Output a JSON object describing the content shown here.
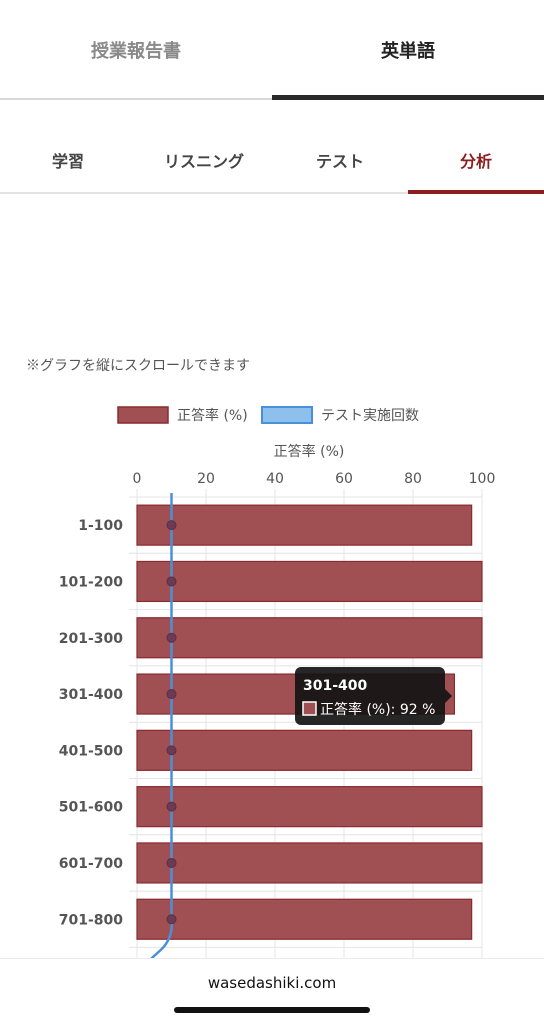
{
  "top_tabs": [
    {
      "label": "授業報告書",
      "active": false
    },
    {
      "label": "英単語",
      "active": true
    }
  ],
  "sub_tabs": [
    {
      "label": "学習",
      "active": false
    },
    {
      "label": "リスニング",
      "active": false
    },
    {
      "label": "テスト",
      "active": false
    },
    {
      "label": "分析",
      "active": true
    }
  ],
  "note": "※グラフを縦にスクロールできます",
  "colors": {
    "accent": "#8b1e1e",
    "bar_fill": "#a05052",
    "bar_border": "#8b2a2e",
    "line": "#4a90d9"
  },
  "chart_data": {
    "type": "bar",
    "orientation": "horizontal",
    "categories": [
      "1-100",
      "101-200",
      "201-300",
      "301-400",
      "401-500",
      "501-600",
      "601-700",
      "701-800"
    ],
    "series": [
      {
        "name": "正答率 (%)",
        "type": "bar",
        "values": [
          97,
          100,
          100,
          92,
          97,
          100,
          100,
          97
        ]
      },
      {
        "name": "テスト実施回数",
        "type": "line",
        "values": [
          10,
          10,
          10,
          10,
          10,
          10,
          10,
          10
        ]
      }
    ],
    "xlabel": "正答率 (%)",
    "xlim": [
      0,
      100
    ],
    "xticks": [
      "0",
      "20",
      "40",
      "60",
      "80",
      "100"
    ],
    "grid": true,
    "legend_position": "top",
    "tooltip": {
      "title": "301-400",
      "label": "正答率 (%): 92 %"
    }
  },
  "footer": {
    "url": "wasedashiki.com"
  }
}
